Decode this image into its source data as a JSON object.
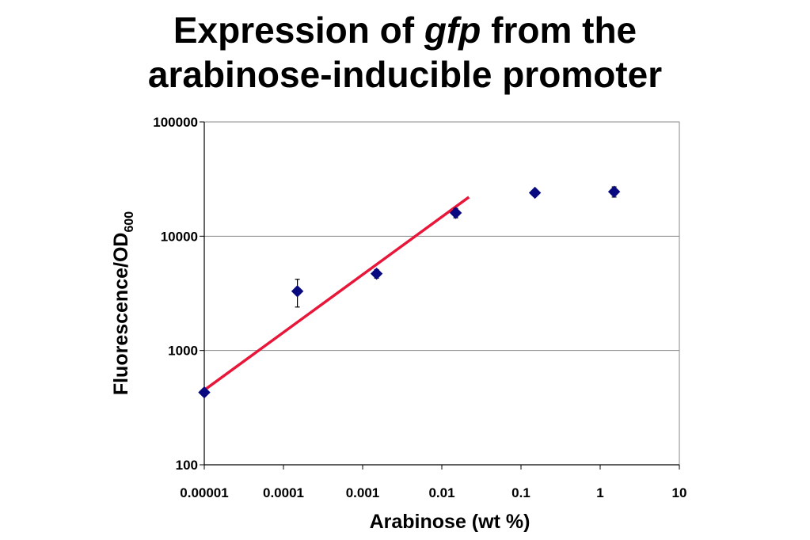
{
  "chart_data": {
    "type": "scatter",
    "title": {
      "before": "Expression of ",
      "italic": "gfp",
      "after": " from the",
      "line2": "arabinose-inducible promoter"
    },
    "xlabel": "Arabinose (wt %)",
    "ylabel": {
      "main": "Fluorescence/OD",
      "subscript": "600"
    },
    "x_scale": "log",
    "y_scale": "log",
    "xlim": [
      1e-05,
      10
    ],
    "ylim": [
      100,
      100000
    ],
    "x_ticks": [
      "0.00001",
      "0.0001",
      "0.001",
      "0.01",
      "0.1",
      "1",
      "10"
    ],
    "y_ticks": [
      "100",
      "1000",
      "10000",
      "100000"
    ],
    "grid": "horizontal",
    "legend": "none",
    "series": [
      {
        "points": [
          {
            "x": 1e-05,
            "y": 430,
            "err": 0
          },
          {
            "x": 0.00015,
            "y": 3300,
            "err": 900
          },
          {
            "x": 0.0015,
            "y": 4700,
            "err": 400
          },
          {
            "x": 0.015,
            "y": 16000,
            "err": 1500
          },
          {
            "x": 0.15,
            "y": 24000,
            "err": 1200
          },
          {
            "x": 1.5,
            "y": 24500,
            "err": 2500
          }
        ],
        "marker_color": "#0a0a80"
      }
    ],
    "fit_line": {
      "points": [
        {
          "x": 1e-05,
          "y": 450
        },
        {
          "x": 0.022,
          "y": 22000
        }
      ],
      "color": "#e8173a"
    }
  }
}
